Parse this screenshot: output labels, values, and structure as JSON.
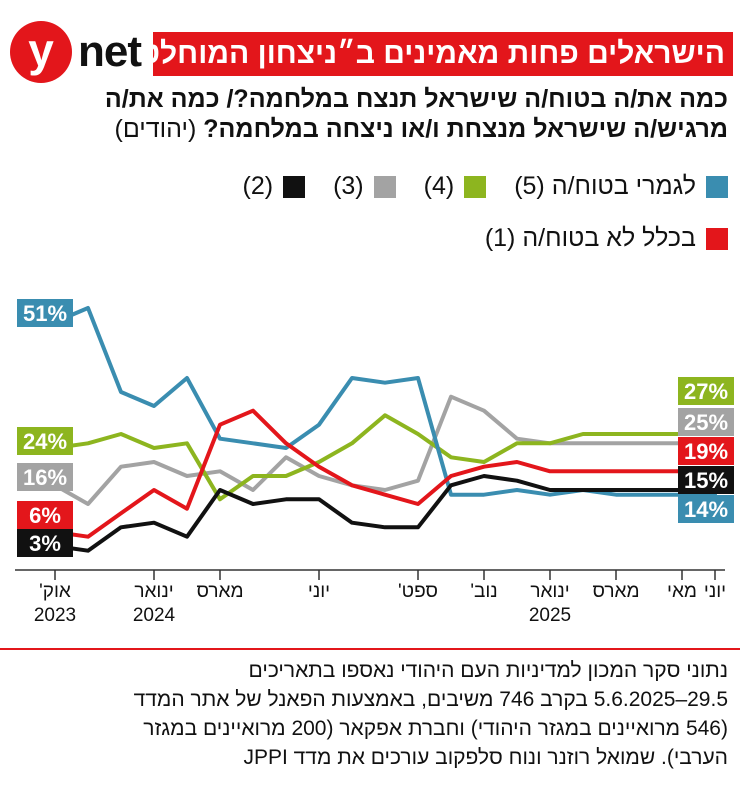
{
  "brand": {
    "logo_letter": "y",
    "logo_word": "net"
  },
  "title": "הישראלים פחות מאמינים ב״ניצחון המוחלט״",
  "subtitle_line1": "כמה את/ה בטוח/ה שישראל תנצח במלחמה?/ כמה את/ה",
  "subtitle_line2": "מרגיש/ה שישראל מנצחת ו/או ניצחה במלחמה?",
  "subtitle_note": "(יהודים)",
  "legend": [
    {
      "label": "לגמרי בטוח/ה (5)",
      "color": "#3a8db0"
    },
    {
      "label": "(4)",
      "color": "#8db51f"
    },
    {
      "label": "(3)",
      "color": "#a3a3a3"
    },
    {
      "label": "(2)",
      "color": "#111111"
    },
    {
      "label": "בכלל לא בטוח/ה (1)",
      "color": "#e3161b"
    }
  ],
  "chart_data": {
    "type": "line",
    "x_axis": "dates, Oct 2023 to Jun 2025",
    "x_dates": [
      "2023-10",
      "2023-11",
      "2023-12",
      "2024-01",
      "2024-02",
      "2024-03",
      "2024-04",
      "2024-05",
      "2024-06",
      "2024-07",
      "2024-08",
      "2024-09",
      "2024-10",
      "2024-11",
      "2024-12",
      "2025-01",
      "2025-02",
      "2025-03",
      "2025-04",
      "2025-05",
      "2025-06"
    ],
    "tick_labels": [
      {
        "date": "2023-10",
        "line1": "אוק'",
        "line2": "2023"
      },
      {
        "date": "2024-01",
        "line1": "ינואר",
        "line2": "2024"
      },
      {
        "date": "2024-03",
        "line1": "מארס",
        "line2": ""
      },
      {
        "date": "2024-06",
        "line1": "יוני",
        "line2": ""
      },
      {
        "date": "2024-09",
        "line1": "ספט'",
        "line2": ""
      },
      {
        "date": "2024-11",
        "line1": "נוב'",
        "line2": ""
      },
      {
        "date": "2025-01",
        "line1": "ינואר",
        "line2": "2025"
      },
      {
        "date": "2025-03",
        "line1": "מארס",
        "line2": ""
      },
      {
        "date": "2025-05",
        "line1": "מאי",
        "line2": ""
      },
      {
        "date": "2025-06",
        "line1": "יוני",
        "line2": ""
      }
    ],
    "series": [
      {
        "name": "לגמרי בטוח/ה (5)",
        "color": "#3a8db0",
        "values": [
          51,
          54,
          36,
          33,
          39,
          26,
          25,
          24,
          29,
          39,
          38,
          39,
          14,
          14,
          15,
          14,
          15,
          14,
          14,
          14,
          14
        ],
        "start_label": "51%",
        "end_label": "14%"
      },
      {
        "name": "(4)",
        "color": "#8db51f",
        "values": [
          24,
          25,
          27,
          24,
          25,
          13,
          18,
          18,
          21,
          25,
          31,
          27,
          22,
          21,
          25,
          25,
          27,
          27,
          27,
          27,
          27
        ],
        "start_label": "24%",
        "end_label": "27%"
      },
      {
        "name": "(3)",
        "color": "#a3a3a3",
        "values": [
          16,
          12,
          20,
          21,
          18,
          19,
          15,
          22,
          18,
          16,
          15,
          17,
          35,
          32,
          26,
          25,
          25,
          25,
          25,
          25,
          25
        ],
        "start_label": "16%",
        "end_label": "25%"
      },
      {
        "name": "(2)",
        "color": "#111111",
        "values": [
          3,
          2,
          7,
          8,
          5,
          15,
          12,
          13,
          13,
          8,
          7,
          7,
          16,
          18,
          17,
          15,
          15,
          15,
          15,
          15,
          15
        ],
        "start_label": "3%",
        "end_label": "15%"
      },
      {
        "name": "בכלל לא בטוח/ה (1)",
        "color": "#e3161b",
        "values": [
          6,
          5,
          10,
          15,
          11,
          29,
          32,
          25,
          20,
          16,
          14,
          12,
          18,
          20,
          21,
          19,
          19,
          19,
          19,
          19,
          19
        ],
        "start_label": "6%",
        "end_label": "19%"
      }
    ],
    "ylim": [
      0,
      60
    ],
    "grid": false
  },
  "source_lines": [
    "נתוני סקר המכון למדיניות העם היהודי נאספו בתאריכים",
    "29.5–5.6.2025 בקרב 746 משיבים, באמצעות הפאנל של אתר המדד",
    "(546 מרואיינים במגזר היהודי) וחברת אפקאר (200 מרואיינים במגזר",
    "הערבי). שמואל רוזנר ונוח סלפקוב עורכים את מדד JPPI"
  ]
}
